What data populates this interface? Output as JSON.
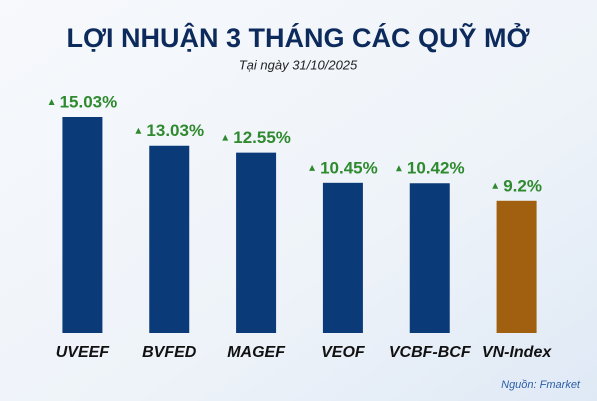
{
  "chart_data": {
    "type": "bar",
    "title": "LỢI NHUẬN 3 THÁNG CÁC QUỸ MỞ",
    "subtitle": "Tại ngày 31/10/2025",
    "categories": [
      "UVEEF",
      "BVFED",
      "MAGEF",
      "VEOF",
      "VCBF-BCF",
      "VN-Index"
    ],
    "values": [
      15.03,
      13.03,
      12.55,
      10.45,
      10.42,
      9.2
    ],
    "value_labels": [
      "15.03%",
      "13.03%",
      "12.55%",
      "10.45%",
      "10.42%",
      "9.2%"
    ],
    "colors": [
      "#0b3a78",
      "#0b3a78",
      "#0b3a78",
      "#0b3a78",
      "#0b3a78",
      "#a0600f"
    ],
    "label_color": "#2f8a2f",
    "source": "Nguồn: Fmarket"
  }
}
